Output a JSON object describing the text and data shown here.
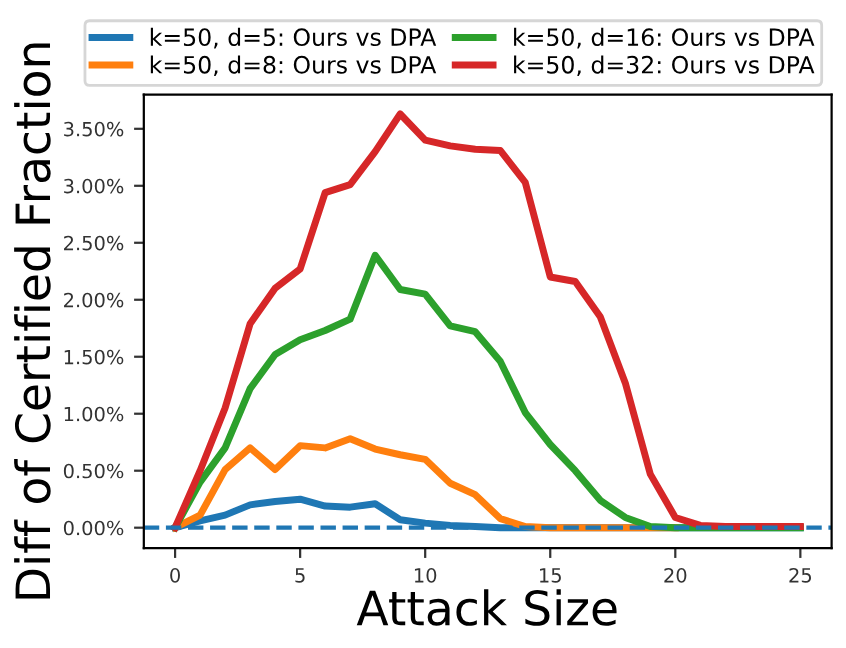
{
  "chart_data": {
    "type": "line",
    "xlabel": "Attack Size",
    "ylabel": "Diff of Certified Fraction",
    "x": [
      0,
      1,
      2,
      3,
      4,
      5,
      6,
      7,
      8,
      9,
      10,
      11,
      12,
      13,
      14,
      15,
      16,
      17,
      18,
      19,
      20,
      21,
      22,
      23,
      24,
      25
    ],
    "series": [
      {
        "name": "k=50, d=5: Ours vs DPA",
        "color": "#1f77b4",
        "values": [
          0,
          0.06,
          0.11,
          0.2,
          0.23,
          0.25,
          0.19,
          0.18,
          0.21,
          0.07,
          0.04,
          0.02,
          0.01,
          0,
          0,
          0,
          0,
          0,
          0,
          0,
          0,
          0,
          0,
          0,
          0,
          0
        ]
      },
      {
        "name": "k=50, d=8: Ours vs DPA",
        "color": "#ff7f0e",
        "values": [
          0,
          0.11,
          0.51,
          0.7,
          0.51,
          0.72,
          0.7,
          0.78,
          0.69,
          0.64,
          0.6,
          0.39,
          0.29,
          0.08,
          0.01,
          0,
          0,
          0,
          0,
          0,
          0,
          null,
          null,
          null,
          null,
          null
        ]
      },
      {
        "name": "k=50, d=16: Ours vs DPA",
        "color": "#2ca02c",
        "values": [
          0,
          0.4,
          0.7,
          1.22,
          1.52,
          1.65,
          1.73,
          1.83,
          2.39,
          2.09,
          2.05,
          1.77,
          1.72,
          1.46,
          1.01,
          0.73,
          0.5,
          0.24,
          0.09,
          0.01,
          0,
          0,
          0,
          0,
          0,
          0
        ]
      },
      {
        "name": "k=50, d=32: Ours vs DPA",
        "color": "#d62728",
        "values": [
          0,
          0.5,
          1.05,
          1.79,
          2.1,
          2.27,
          2.94,
          3.01,
          3.3,
          3.63,
          3.4,
          3.35,
          3.32,
          3.31,
          3.03,
          2.2,
          2.16,
          1.85,
          1.27,
          0.47,
          0.09,
          0.02,
          0.01,
          0.01,
          0.01,
          0.01
        ]
      }
    ],
    "xlim": [
      -1.25,
      26.25
    ],
    "xticks": [
      0,
      5,
      10,
      15,
      20,
      25
    ],
    "ylim": [
      -0.18,
      3.8
    ],
    "yticks": [
      {
        "value": 0,
        "label": "0.00%"
      },
      {
        "value": 0.5,
        "label": "0.50%"
      },
      {
        "value": 1,
        "label": "1.00%"
      },
      {
        "value": 1.5,
        "label": "1.50%"
      },
      {
        "value": 2,
        "label": "2.00%"
      },
      {
        "value": 2.5,
        "label": "2.50%"
      },
      {
        "value": 3,
        "label": "3.00%"
      },
      {
        "value": 3.5,
        "label": "3.50%"
      }
    ],
    "ref_lines": [
      {
        "axis": "y",
        "value": 0,
        "color": "#1f77b4",
        "line_style": "dashed"
      }
    ],
    "legend": "top",
    "grid": false,
    "marker": "none",
    "line_style": "solid"
  }
}
